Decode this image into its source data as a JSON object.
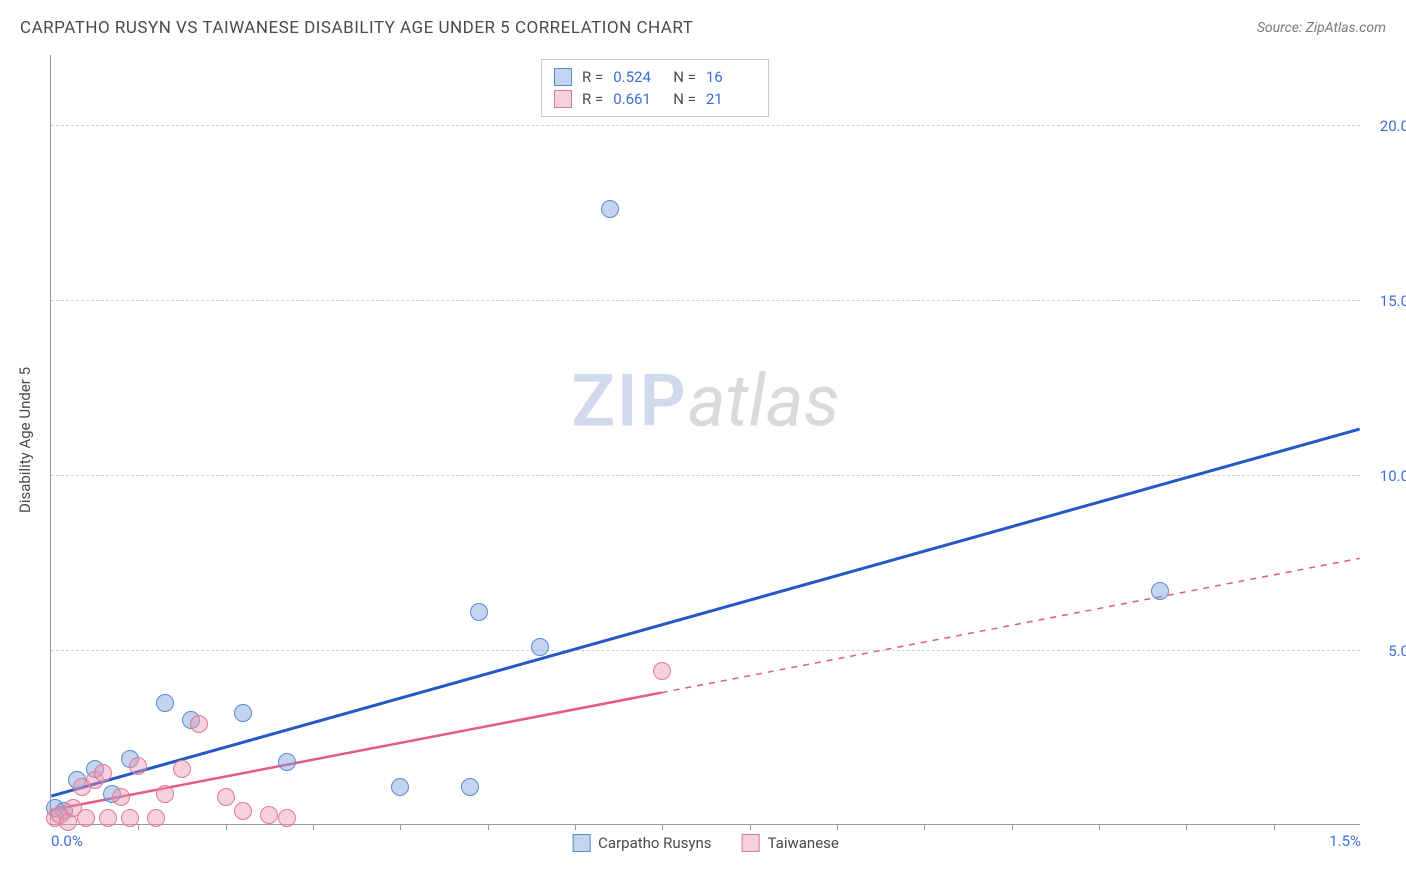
{
  "title": "CARPATHO RUSYN VS TAIWANESE DISABILITY AGE UNDER 5 CORRELATION CHART",
  "source": "Source: ZipAtlas.com",
  "y_axis_label": "Disability Age Under 5",
  "watermark": {
    "zip": "ZIP",
    "atlas": "atlas"
  },
  "chart": {
    "type": "scatter",
    "background_color": "#ffffff",
    "grid_color": "#d0d0d0",
    "xlim": [
      0.0,
      1.5
    ],
    "ylim": [
      0.0,
      22.0
    ],
    "x_ticks": [
      0.0,
      1.5
    ],
    "x_tick_labels": [
      "0.0%",
      "1.5%"
    ],
    "y_ticks": [
      5.0,
      10.0,
      15.0,
      20.0
    ],
    "y_tick_labels": [
      "5.0%",
      "10.0%",
      "15.0%",
      "20.0%"
    ],
    "x_minor_ticks": [
      0.1,
      0.2,
      0.3,
      0.4,
      0.5,
      0.6,
      0.7,
      0.8,
      0.9,
      1.0,
      1.1,
      1.2,
      1.3,
      1.4
    ],
    "marker_radius": 9,
    "marker_stroke_width": 1.2,
    "series": [
      {
        "name": "Carpatho Rusyns",
        "color_fill": "rgba(120,160,220,0.45)",
        "color_stroke": "#5b8bd0",
        "R": "0.524",
        "N": "16",
        "trend": {
          "x1": 0.0,
          "y1": 0.8,
          "x2": 1.5,
          "y2": 11.3,
          "color": "#2558c7",
          "width": 3,
          "solid_until_x": 1.5
        },
        "points": [
          {
            "x": 0.005,
            "y": 0.5
          },
          {
            "x": 0.015,
            "y": 0.4
          },
          {
            "x": 0.03,
            "y": 1.3
          },
          {
            "x": 0.05,
            "y": 1.6
          },
          {
            "x": 0.07,
            "y": 0.9
          },
          {
            "x": 0.09,
            "y": 1.9
          },
          {
            "x": 0.13,
            "y": 3.5
          },
          {
            "x": 0.16,
            "y": 3.0
          },
          {
            "x": 0.22,
            "y": 3.2
          },
          {
            "x": 0.27,
            "y": 1.8
          },
          {
            "x": 0.4,
            "y": 1.1
          },
          {
            "x": 0.48,
            "y": 1.1
          },
          {
            "x": 0.49,
            "y": 6.1
          },
          {
            "x": 0.56,
            "y": 5.1
          },
          {
            "x": 0.64,
            "y": 17.6
          },
          {
            "x": 1.27,
            "y": 6.7
          }
        ]
      },
      {
        "name": "Taiwanese",
        "color_fill": "rgba(235,150,175,0.45)",
        "color_stroke": "#e07a9a",
        "R": "0.661",
        "N": "21",
        "trend": {
          "x1": 0.0,
          "y1": 0.4,
          "x2": 1.5,
          "y2": 7.6,
          "color": "#e35a86",
          "width": 2.5,
          "solid_until_x": 0.7
        },
        "points": [
          {
            "x": 0.005,
            "y": 0.2
          },
          {
            "x": 0.01,
            "y": 0.3
          },
          {
            "x": 0.02,
            "y": 0.1
          },
          {
            "x": 0.025,
            "y": 0.5
          },
          {
            "x": 0.035,
            "y": 1.1
          },
          {
            "x": 0.04,
            "y": 0.2
          },
          {
            "x": 0.05,
            "y": 1.3
          },
          {
            "x": 0.06,
            "y": 1.5
          },
          {
            "x": 0.065,
            "y": 0.2
          },
          {
            "x": 0.08,
            "y": 0.8
          },
          {
            "x": 0.09,
            "y": 0.2
          },
          {
            "x": 0.1,
            "y": 1.7
          },
          {
            "x": 0.12,
            "y": 0.2
          },
          {
            "x": 0.13,
            "y": 0.9
          },
          {
            "x": 0.15,
            "y": 1.6
          },
          {
            "x": 0.17,
            "y": 2.9
          },
          {
            "x": 0.2,
            "y": 0.8
          },
          {
            "x": 0.22,
            "y": 0.4
          },
          {
            "x": 0.25,
            "y": 0.3
          },
          {
            "x": 0.27,
            "y": 0.2
          },
          {
            "x": 0.7,
            "y": 4.4
          }
        ]
      }
    ]
  },
  "stats_prefix_R": "R =",
  "stats_prefix_N": "N ="
}
